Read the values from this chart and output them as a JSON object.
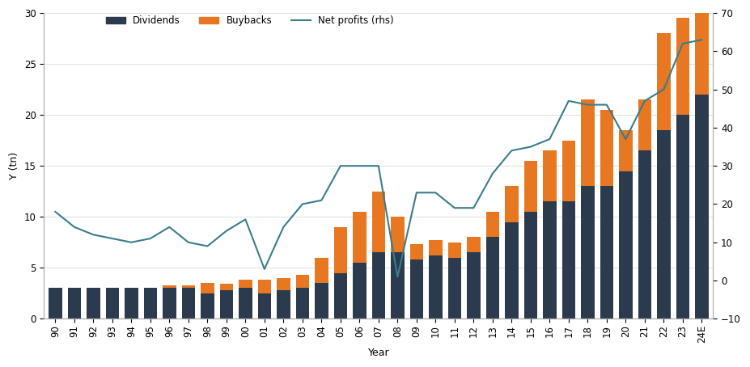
{
  "years": [
    "90",
    "91",
    "92",
    "93",
    "94",
    "95",
    "96",
    "97",
    "98",
    "99",
    "00",
    "01",
    "02",
    "03",
    "04",
    "05",
    "06",
    "07",
    "08",
    "09",
    "10",
    "11",
    "12",
    "13",
    "14",
    "15",
    "16",
    "17",
    "18",
    "19",
    "20",
    "21",
    "22",
    "23",
    "24E"
  ],
  "dividends": [
    3.0,
    3.0,
    3.0,
    3.0,
    3.0,
    3.0,
    3.0,
    3.0,
    2.5,
    2.8,
    3.0,
    2.5,
    2.8,
    3.0,
    3.5,
    4.5,
    5.5,
    6.5,
    6.5,
    5.8,
    6.2,
    6.0,
    6.5,
    8.0,
    9.5,
    10.5,
    11.5,
    11.5,
    13.0,
    13.0,
    14.5,
    16.5,
    18.5,
    20.0,
    22.0
  ],
  "buybacks": [
    0.0,
    0.0,
    0.0,
    0.0,
    0.0,
    0.0,
    0.3,
    0.3,
    1.0,
    0.6,
    0.8,
    1.3,
    1.2,
    1.3,
    2.5,
    4.5,
    5.0,
    6.0,
    3.5,
    1.5,
    1.5,
    1.5,
    1.5,
    2.5,
    3.5,
    5.0,
    5.0,
    6.0,
    8.5,
    7.5,
    4.0,
    5.0,
    9.5,
    9.5,
    8.0
  ],
  "net_profits_rhs": [
    18,
    14,
    12,
    11,
    10,
    11,
    14,
    10,
    9,
    13,
    16,
    3,
    14,
    20,
    21,
    30,
    30,
    30,
    1,
    23,
    23,
    19,
    19,
    28,
    34,
    35,
    37,
    47,
    46,
    46,
    37,
    47,
    50,
    62,
    63
  ],
  "bar_color_dividends": "#2b3a4d",
  "bar_color_buybacks": "#e87722",
  "line_color": "#3a7d8c",
  "ylabel_left": "Y (tn)",
  "xlabel": "Year",
  "ylim_left": [
    0,
    30
  ],
  "ylim_right": [
    -10,
    70
  ],
  "yticks_left": [
    0,
    5,
    10,
    15,
    20,
    25,
    30
  ],
  "yticks_right": [
    -10,
    0,
    10,
    20,
    30,
    40,
    50,
    60,
    70
  ],
  "background_color": "#ffffff",
  "legend_labels": [
    "Dividends",
    "Buybacks",
    "Net profits (rhs)"
  ]
}
